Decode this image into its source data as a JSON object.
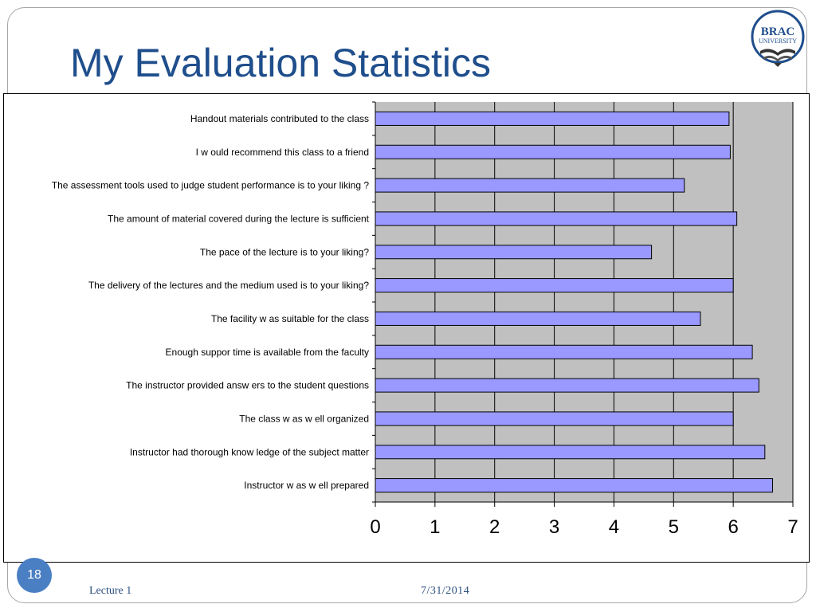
{
  "slide": {
    "title": "My Evaluation Statistics",
    "number": "18",
    "footer_left": "Lecture 1",
    "footer_date": "7/31/2014"
  },
  "logo": {
    "line1": "BRAC",
    "line2": "UNIVERSITY",
    "color": "#1f4e8c"
  },
  "colors": {
    "bar_fill": "#9999ff",
    "plot_background": "#c0c0c0",
    "title": "#1f4e8c"
  },
  "chart_data": {
    "type": "bar",
    "orientation": "horizontal",
    "categories": [
      "Handout materials contributed to the class",
      "I w ould recommend this class to a friend",
      "The assessment tools used to judge student performance is to your liking ?",
      "The amount of material covered during the lecture is sufficient",
      "The pace of the lecture is to your liking?",
      "The delivery of the lectures and the medium used is to your liking?",
      "The facility w as suitable for the class",
      "Enough suppor time is available from the faculty",
      "The instructor provided answ ers to the student questions",
      "The class w as w ell organized",
      "Instructor had thorough know ledge of the subject matter",
      "Instructor w as w ell prepared"
    ],
    "values": [
      5.93,
      5.95,
      5.18,
      6.06,
      4.63,
      6.0,
      5.45,
      6.32,
      6.43,
      6.0,
      6.53,
      6.66
    ],
    "xlim": [
      0,
      7
    ],
    "xticks": [
      "0",
      "1",
      "2",
      "3",
      "4",
      "5",
      "6",
      "7"
    ],
    "grid": true,
    "legend": "none",
    "title": "",
    "xlabel": "",
    "ylabel": ""
  }
}
